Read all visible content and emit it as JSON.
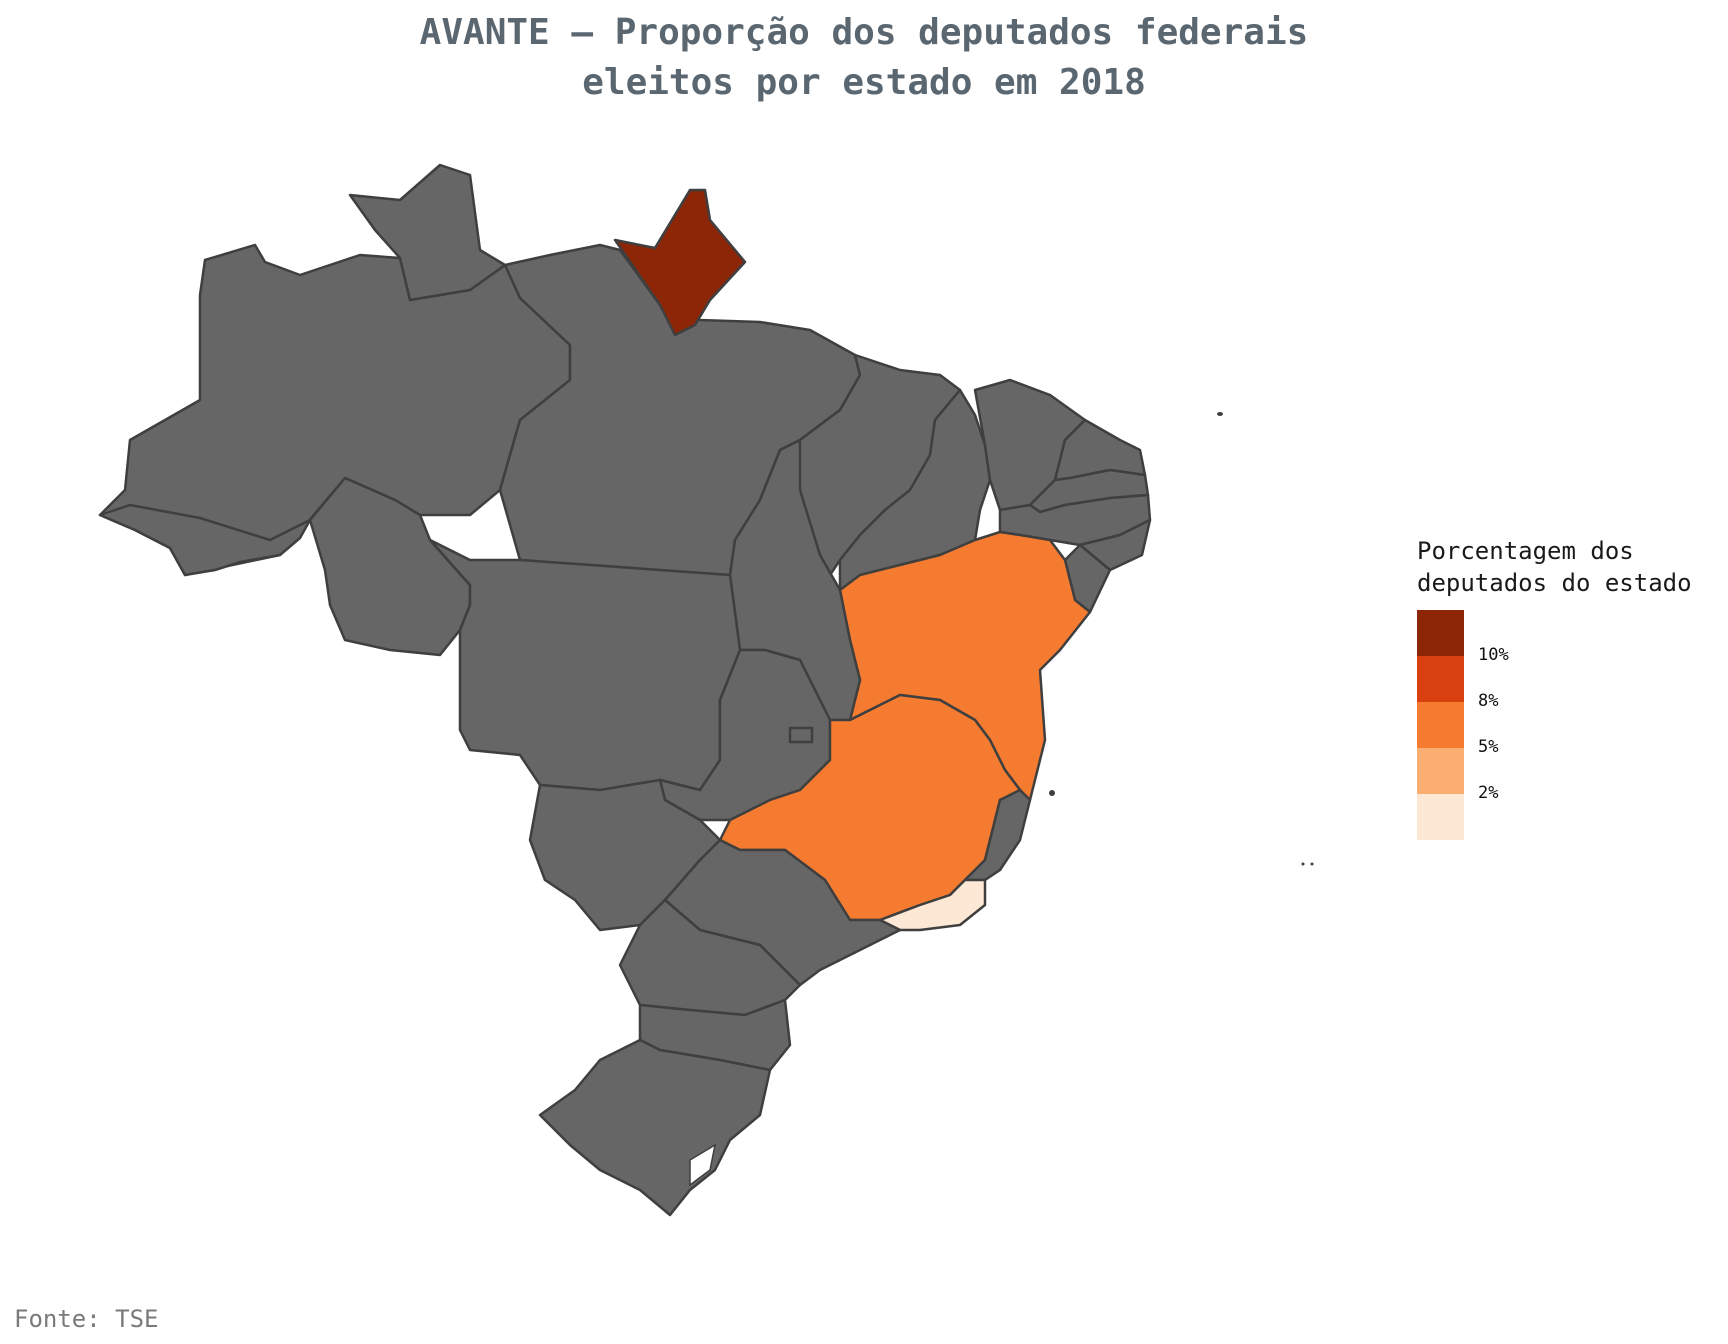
{
  "title": {
    "line1": "AVANTE – Proporção dos deputados federais",
    "line2": "eleitos por estado em 2018"
  },
  "legend": {
    "title_line1": "Porcentagem dos",
    "title_line2": "deputados do estado",
    "bins": [
      {
        "color": "#8c2607"
      },
      {
        "color": "#d9400f"
      },
      {
        "color": "#f57b30"
      },
      {
        "color": "#faae71"
      },
      {
        "color": "#fde8d6"
      }
    ],
    "ticks": [
      "10%",
      "8%",
      "5%",
      "2%"
    ]
  },
  "map": {
    "colors": {
      "no_data": "#666666",
      "ap": "#8c2607",
      "ba": "#f57b30",
      "mg": "#f57b30",
      "rj": "#fde8d6"
    },
    "states": [
      "AC",
      "AM",
      "RR",
      "PA",
      "AP",
      "MA",
      "PI",
      "CE",
      "RN",
      "PB",
      "PE",
      "AL",
      "SE",
      "BA",
      "TO",
      "RO",
      "MT",
      "GO",
      "DF",
      "MS",
      "MG",
      "ES",
      "RJ",
      "SP",
      "PR",
      "SC",
      "RS"
    ]
  },
  "source": "Fonte: TSE"
}
